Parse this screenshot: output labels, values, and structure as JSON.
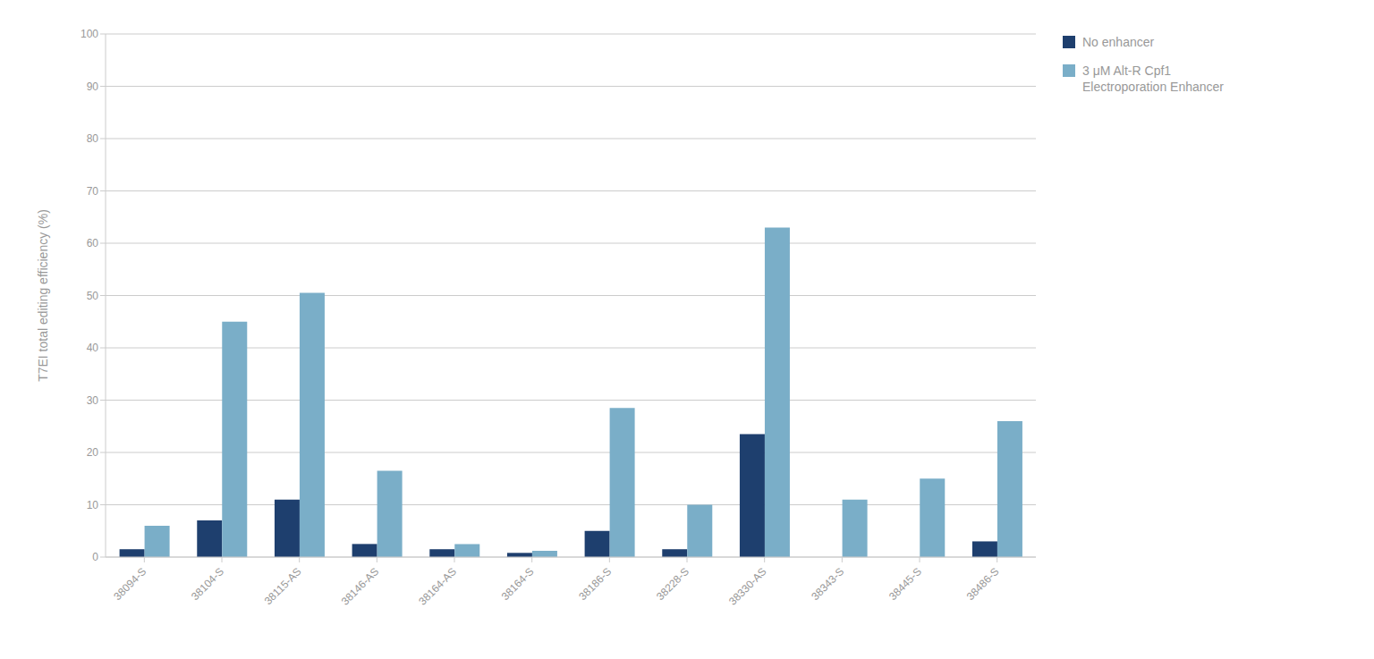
{
  "chart_data": {
    "type": "bar",
    "y_label": "T7EI total editing efficiency (%)",
    "categories": [
      "38094-S",
      "38104-S",
      "38115-AS",
      "38146-AS",
      "38164-AS",
      "38164-S",
      "38186-S",
      "38228-S",
      "38330-AS",
      "38343-S",
      "38445-S",
      "38486-S"
    ],
    "series": [
      {
        "name": "No enhancer",
        "color": "#1e3f6e",
        "values": [
          1.5,
          7.0,
          11.0,
          2.5,
          1.5,
          0.8,
          5.0,
          1.5,
          23.5,
          0,
          0,
          3.0
        ]
      },
      {
        "name": "3 μM Alt-R Cpf1\nElectroporation Enhancer",
        "color": "#7aaec8",
        "values": [
          6.0,
          45.0,
          50.5,
          16.5,
          2.5,
          1.2,
          28.5,
          10.0,
          63.0,
          11.0,
          15.0,
          26.0
        ]
      }
    ],
    "ylim": [
      0,
      100
    ],
    "yticks": [
      0,
      10,
      20,
      30,
      40,
      50,
      60,
      70,
      80,
      90,
      100
    ],
    "grid": true,
    "legend": "right"
  }
}
